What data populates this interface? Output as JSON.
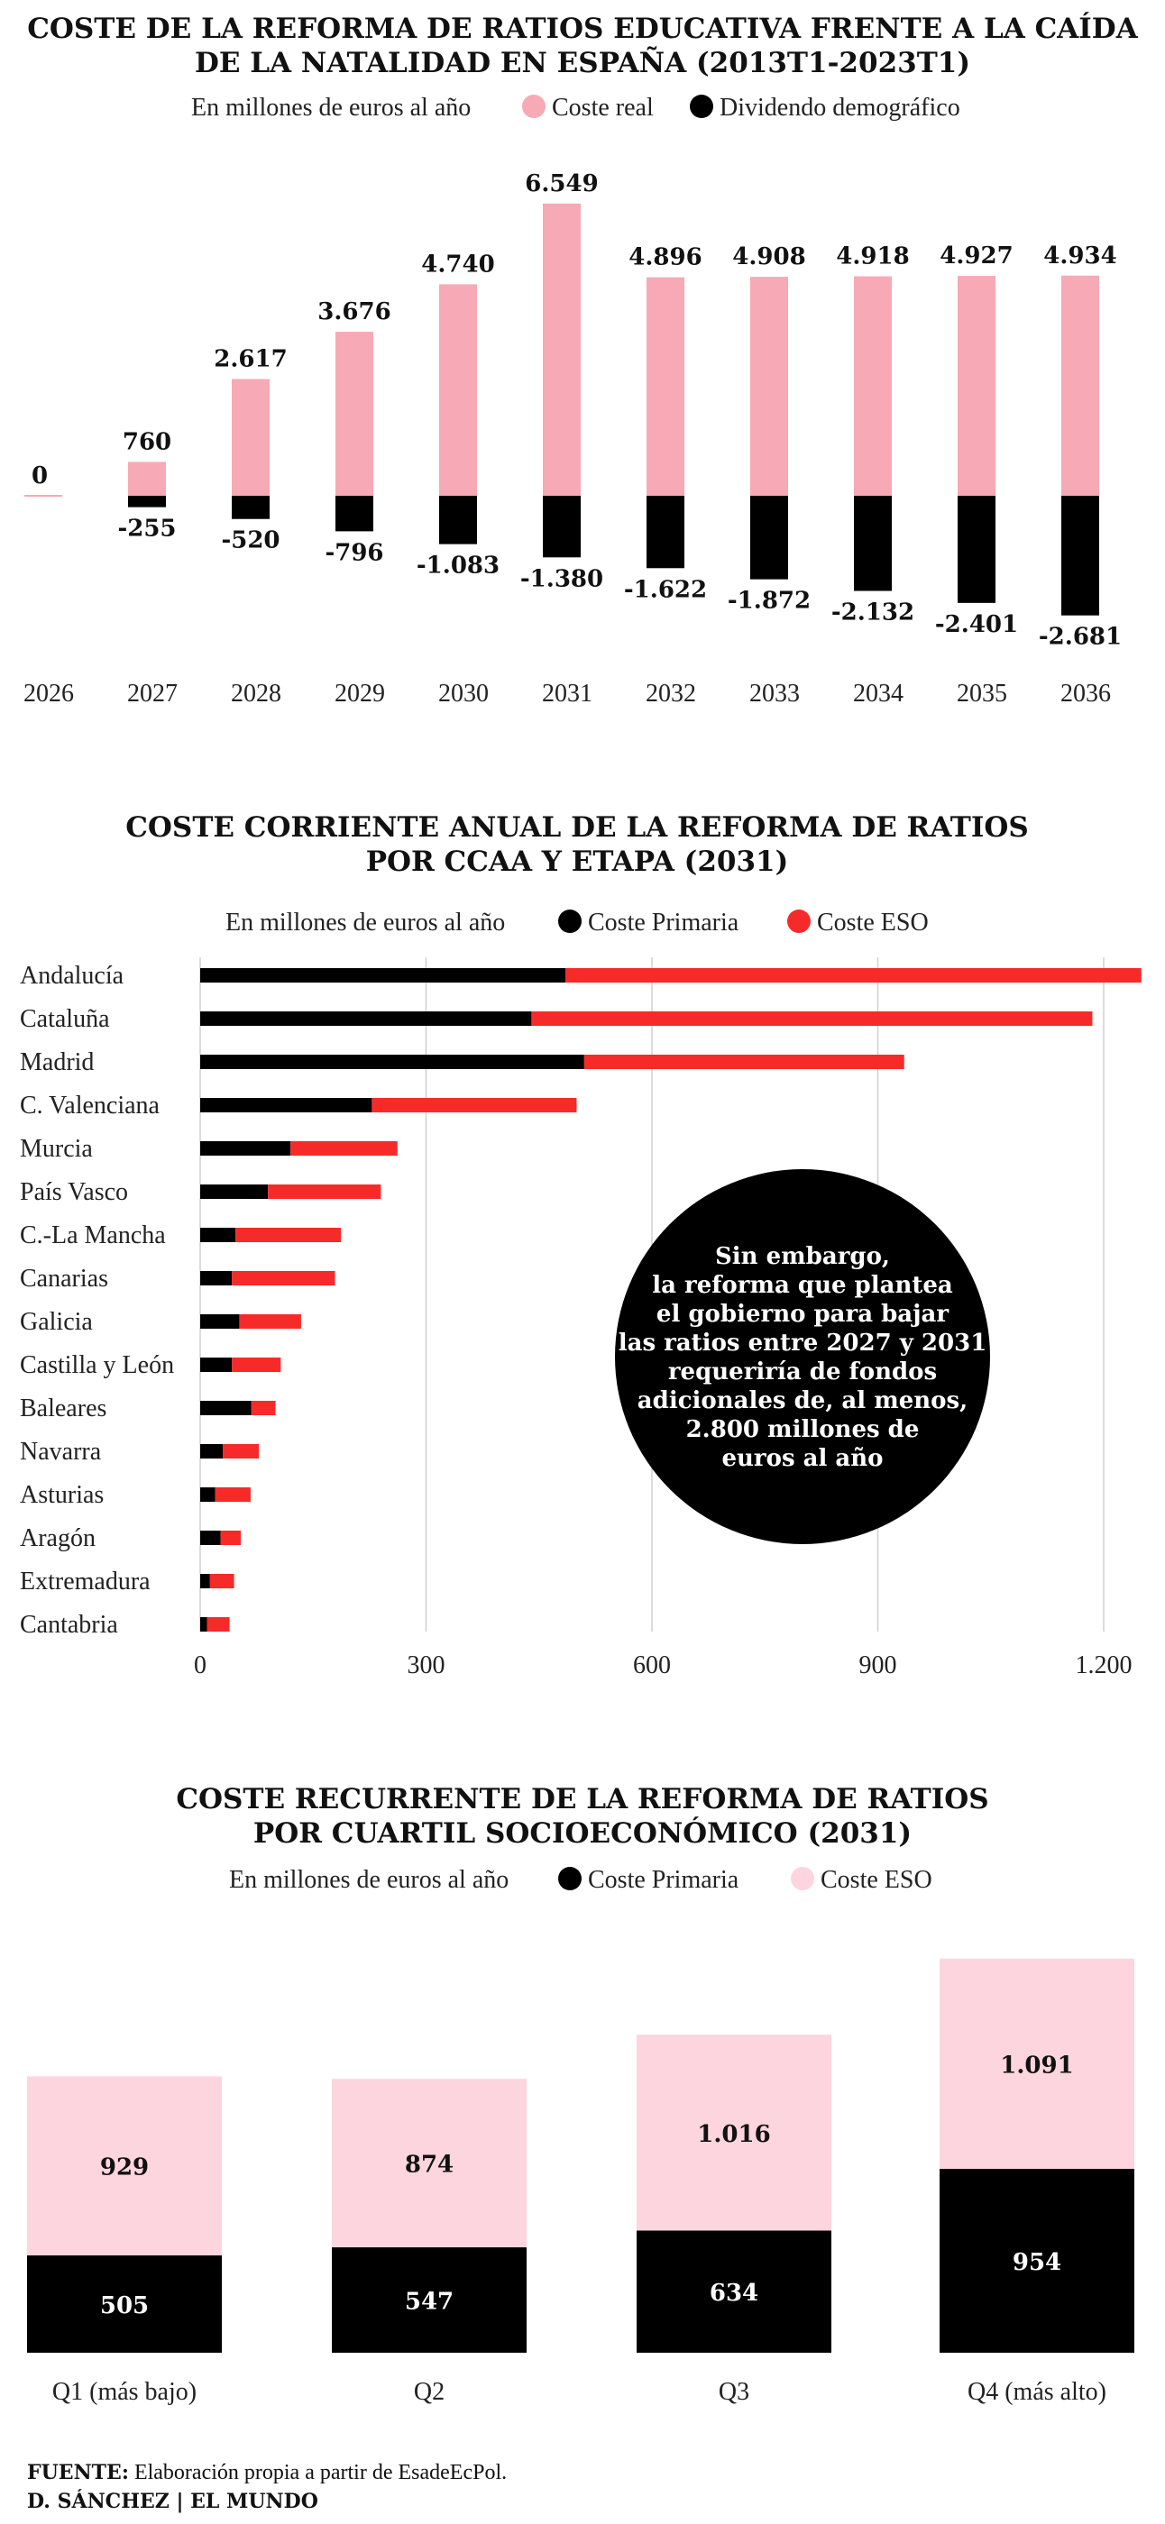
{
  "chart_data": [
    {
      "type": "bar",
      "title_lines": [
        "COSTE DE LA REFORMA DE RATIOS EDUCATIVA FRENTE A LA CAÍDA",
        "DE LA NATALIDAD EN ESPAÑA (2013T1-2023T1)"
      ],
      "unit_label": "En millones de euros al año",
      "legend": [
        {
          "label": "Coste real",
          "color": "#f7a9b6"
        },
        {
          "label": "Dividendo demográfico",
          "color": "#000000"
        }
      ],
      "categories": [
        "2026",
        "2027",
        "2028",
        "2029",
        "2030",
        "2031",
        "2032",
        "2033",
        "2034",
        "2035",
        "2036"
      ],
      "series": [
        {
          "name": "Coste real",
          "color": "#f7a9b6",
          "values": [
            0,
            760,
            2617,
            3676,
            4740,
            6549,
            4896,
            4908,
            4918,
            4927,
            4934
          ],
          "labels": [
            "0",
            "760",
            "2.617",
            "3.676",
            "4.740",
            "6.549",
            "4.896",
            "4.908",
            "4.918",
            "4.927",
            "4.934"
          ]
        },
        {
          "name": "Dividendo demográfico",
          "color": "#000000",
          "values": [
            0,
            -255,
            -520,
            -796,
            -1083,
            -1380,
            -1622,
            -1872,
            -2132,
            -2401,
            -2681
          ],
          "labels": [
            "",
            "-255",
            "-520",
            "-796",
            "-1.083",
            "-1.380",
            "-1.622",
            "-1.872",
            "-2.132",
            "-2.401",
            "-2.681"
          ]
        }
      ]
    },
    {
      "type": "bar",
      "orientation": "horizontal",
      "stacked": true,
      "title_lines": [
        "COSTE CORRIENTE ANUAL DE  LA REFORMA DE RATIOS",
        "POR CCAA Y ETAPA (2031)"
      ],
      "unit_label": "En millones de euros al año",
      "legend": [
        {
          "label": "Coste Primaria",
          "color": "#000000"
        },
        {
          "label": "Coste ESO",
          "color": "#f72a2a"
        }
      ],
      "categories": [
        "Andalucía",
        "Cataluña",
        "Madrid",
        "C. Valenciana",
        "Murcia",
        "País Vasco",
        "C.-La Mancha",
        "Canarias",
        "Galicia",
        "Castilla y León",
        "Baleares",
        "Navarra",
        "Asturias",
        "Aragón",
        "Extremadura",
        "Cantabria"
      ],
      "series": [
        {
          "name": "Coste Primaria",
          "color": "#000000",
          "values": [
            485,
            440,
            510,
            228,
            120,
            90,
            47,
            42,
            52,
            42,
            68,
            30,
            20,
            27,
            13,
            9
          ]
        },
        {
          "name": "Coste ESO",
          "color": "#f72a2a",
          "values": [
            765,
            745,
            425,
            272,
            142,
            150,
            140,
            137,
            82,
            65,
            32,
            48,
            47,
            27,
            32,
            30
          ]
        }
      ],
      "xlim": [
        0,
        1250
      ],
      "xticks": [
        0,
        300,
        600,
        900,
        1200
      ],
      "xtick_labels": [
        "0",
        "300",
        "600",
        "900",
        "1.200"
      ],
      "grid": true,
      "annotation_lines": [
        "Sin embargo,",
        "la reforma que plantea",
        "el gobierno para bajar",
        "las ratios entre 2027 y 2031",
        "requeriría de fondos",
        "adicionales de, al menos,",
        "2.800 millones de",
        "euros al año"
      ]
    },
    {
      "type": "bar",
      "stacked": true,
      "title_lines": [
        "COSTE RECURRENTE DE LA REFORMA DE RATIOS",
        "POR CUARTIL SOCIOECONÓMICO (2031)"
      ],
      "unit_label": "En millones de euros al año",
      "legend": [
        {
          "label": "Coste Primaria",
          "color": "#000000"
        },
        {
          "label": "Coste ESO",
          "color": "#fdd5de"
        }
      ],
      "categories": [
        "Q1 (más bajo)",
        "Q2",
        "Q3",
        "Q4 (más alto)"
      ],
      "series": [
        {
          "name": "Coste Primaria",
          "color": "#000000",
          "values": [
            505,
            547,
            634,
            954
          ],
          "labels": [
            "505",
            "547",
            "634",
            "954"
          ]
        },
        {
          "name": "Coste ESO",
          "color": "#fdd5de",
          "values": [
            929,
            874,
            1016,
            1091
          ],
          "labels": [
            "929",
            "874",
            "1.016",
            "1.091"
          ]
        }
      ]
    }
  ],
  "footer": {
    "source_label": "FUENTE:",
    "source_text": " Elaboración propia a partir de EsadeEcPol.",
    "credit": "D. SÁNCHEZ | EL MUNDO"
  }
}
